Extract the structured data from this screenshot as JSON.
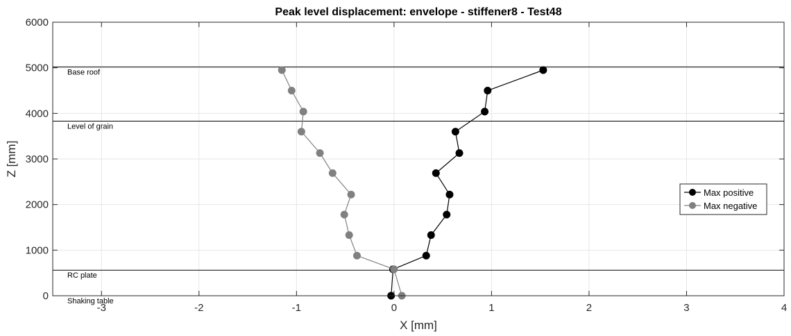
{
  "chart_data": {
    "type": "line",
    "title": "Peak level displacement: envelope - stiffener8 - Test48",
    "xlabel": "X [mm]",
    "ylabel": "Z [mm]",
    "xlim": [
      -3.5,
      4
    ],
    "ylim": [
      0,
      6000
    ],
    "x_ticks": [
      -3,
      -2,
      -1,
      0,
      1,
      2,
      3,
      4
    ],
    "x_tick_labels": [
      "-3",
      "-2",
      "-1",
      "0",
      "1",
      "2",
      "3",
      "4"
    ],
    "y_ticks": [
      0,
      1000,
      2000,
      3000,
      4000,
      5000,
      6000
    ],
    "y_tick_labels": [
      "0",
      "1000",
      "2000",
      "3000",
      "4000",
      "5000",
      "6000"
    ],
    "grid": true,
    "legend_position": "right",
    "levels": [
      {
        "label": "Base roof",
        "z": 5020
      },
      {
        "label": "Level of grain",
        "z": 3830
      },
      {
        "label": "RC plate",
        "z": 560
      },
      {
        "label": "Shaking table",
        "z": 0
      }
    ],
    "series": [
      {
        "name": "Max positive",
        "color": "#000000",
        "points": [
          {
            "x": -0.03,
            "z": 0
          },
          {
            "x": -0.01,
            "z": 580
          },
          {
            "x": 0.33,
            "z": 880
          },
          {
            "x": 0.38,
            "z": 1330
          },
          {
            "x": 0.54,
            "z": 1780
          },
          {
            "x": 0.57,
            "z": 2220
          },
          {
            "x": 0.43,
            "z": 2690
          },
          {
            "x": 0.67,
            "z": 3130
          },
          {
            "x": 0.63,
            "z": 3600
          },
          {
            "x": 0.93,
            "z": 4040
          },
          {
            "x": 0.96,
            "z": 4500
          },
          {
            "x": 1.53,
            "z": 4950
          }
        ]
      },
      {
        "name": "Max negative",
        "color": "#808080",
        "points": [
          {
            "x": 0.08,
            "z": 0
          },
          {
            "x": 0.0,
            "z": 580
          },
          {
            "x": -0.38,
            "z": 880
          },
          {
            "x": -0.46,
            "z": 1330
          },
          {
            "x": -0.51,
            "z": 1780
          },
          {
            "x": -0.44,
            "z": 2220
          },
          {
            "x": -0.63,
            "z": 2690
          },
          {
            "x": -0.76,
            "z": 3130
          },
          {
            "x": -0.95,
            "z": 3600
          },
          {
            "x": -0.93,
            "z": 4040
          },
          {
            "x": -1.05,
            "z": 4500
          },
          {
            "x": -1.15,
            "z": 4950
          }
        ]
      }
    ]
  }
}
